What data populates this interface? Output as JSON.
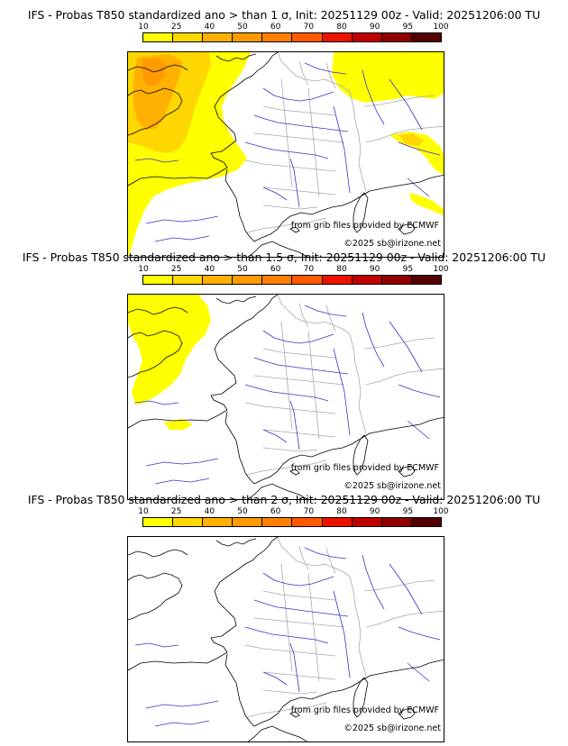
{
  "panels": [
    {
      "title": "IFS - Probas T850  standardized ano > than 1 σ, Init: 20251129 00z - Valid: 20251206:00 TU",
      "credits": [
        "from grib files provided by ECMWF",
        "©2025 sb@irizone.net"
      ]
    },
    {
      "title": "IFS - Probas T850  standardized ano > than 1.5 σ, Init: 20251129 00z - Valid: 20251206:00 TU",
      "credits": [
        "from grib files provided by ECMWF",
        "©2025 sb@irizone.net"
      ]
    },
    {
      "title": "IFS - Probas T850  standardized ano > than 2 σ, Init: 20251129 00z - Valid: 20251206:00 TU",
      "credits": [
        "from grib files provided by ECMWF",
        "©2025 sb@irizone.net"
      ]
    }
  ],
  "colorbar": {
    "ticks": [
      "10",
      "25",
      "40",
      "50",
      "60",
      "70",
      "80",
      "90",
      "95",
      "100"
    ],
    "colors": [
      "#ffff00",
      "#ffd700",
      "#ffb000",
      "#ff9a00",
      "#ff8000",
      "#ff5a00",
      "#ee1100",
      "#c00000",
      "#900000",
      "#550000"
    ]
  },
  "map_colors": {
    "coast": "#000000",
    "rivers": "#3333cc",
    "borders": "#a8a8a8"
  }
}
